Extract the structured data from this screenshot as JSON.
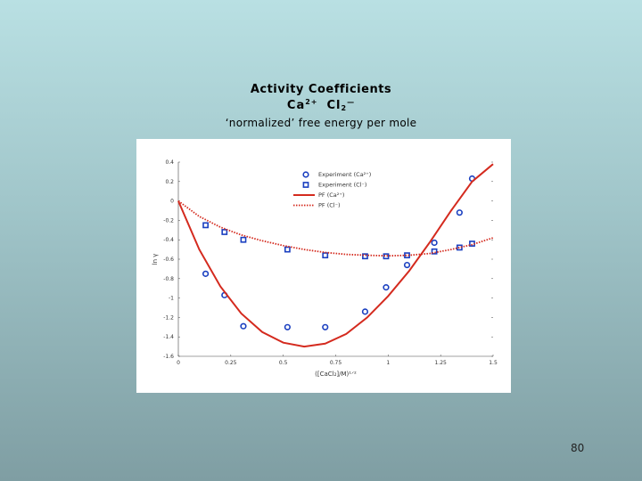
{
  "slide": {
    "title": "Activity Coefficients",
    "species_cation": "Ca",
    "cation_charge": "2+",
    "species_anion": "Cl",
    "anion_subscript": "2",
    "anion_charge": "—",
    "subtitle": "‘normalized’ free energy per mole",
    "page_number": "80"
  },
  "chart_data": {
    "type": "scatter",
    "xlabel": "([CaCl₂]/M)¹ᐟ²",
    "ylabel": "ln γ",
    "xlim": [
      0,
      1.5
    ],
    "ylim": [
      -1.6,
      0.4
    ],
    "x_ticks": [
      "0",
      "0.25",
      "0.5",
      "0.75",
      "1",
      "1.25",
      "1.5"
    ],
    "y_ticks": [
      "0.4",
      "0.2",
      "0",
      "-0.2",
      "-0.4",
      "-0.6",
      "-0.8",
      "-1",
      "-1.2",
      "-1.4",
      "-1.6"
    ],
    "grid": false,
    "legend_position": "top-right",
    "series": [
      {
        "name": "Experiment (Ca²⁺)",
        "kind": "marker-circle",
        "color": "#1a3fc0",
        "points": [
          [
            0.13,
            -0.75
          ],
          [
            0.22,
            -0.97
          ],
          [
            0.31,
            -1.29
          ],
          [
            0.52,
            -1.3
          ],
          [
            0.7,
            -1.3
          ],
          [
            0.89,
            -1.14
          ],
          [
            0.99,
            -0.89
          ],
          [
            1.09,
            -0.66
          ],
          [
            1.22,
            -0.43
          ],
          [
            1.34,
            -0.12
          ],
          [
            1.4,
            0.23
          ]
        ]
      },
      {
        "name": "Experiment (Cl⁻)",
        "kind": "marker-square",
        "color": "#1a3fc0",
        "points": [
          [
            0.13,
            -0.25
          ],
          [
            0.22,
            -0.32
          ],
          [
            0.31,
            -0.4
          ],
          [
            0.52,
            -0.5
          ],
          [
            0.7,
            -0.56
          ],
          [
            0.89,
            -0.57
          ],
          [
            0.99,
            -0.57
          ],
          [
            1.09,
            -0.56
          ],
          [
            1.22,
            -0.52
          ],
          [
            1.34,
            -0.48
          ],
          [
            1.4,
            -0.44
          ]
        ]
      },
      {
        "name": "PF (Ca²⁺)",
        "kind": "line-solid",
        "color": "#d42a1e",
        "points": [
          [
            0,
            0
          ],
          [
            0.1,
            -0.5
          ],
          [
            0.2,
            -0.88
          ],
          [
            0.3,
            -1.16
          ],
          [
            0.4,
            -1.35
          ],
          [
            0.5,
            -1.46
          ],
          [
            0.6,
            -1.5
          ],
          [
            0.7,
            -1.47
          ],
          [
            0.8,
            -1.37
          ],
          [
            0.9,
            -1.2
          ],
          [
            1.0,
            -0.98
          ],
          [
            1.1,
            -0.72
          ],
          [
            1.2,
            -0.42
          ],
          [
            1.3,
            -0.1
          ],
          [
            1.4,
            0.2
          ],
          [
            1.5,
            0.38
          ]
        ]
      },
      {
        "name": "PF (Cl⁻)",
        "kind": "line-dotted",
        "color": "#d42a1e",
        "points": [
          [
            0,
            0
          ],
          [
            0.1,
            -0.16
          ],
          [
            0.2,
            -0.27
          ],
          [
            0.3,
            -0.35
          ],
          [
            0.4,
            -0.41
          ],
          [
            0.5,
            -0.46
          ],
          [
            0.6,
            -0.5
          ],
          [
            0.7,
            -0.53
          ],
          [
            0.8,
            -0.55
          ],
          [
            0.9,
            -0.56
          ],
          [
            1.0,
            -0.565
          ],
          [
            1.1,
            -0.56
          ],
          [
            1.2,
            -0.54
          ],
          [
            1.3,
            -0.5
          ],
          [
            1.4,
            -0.45
          ],
          [
            1.5,
            -0.38
          ]
        ]
      }
    ]
  }
}
